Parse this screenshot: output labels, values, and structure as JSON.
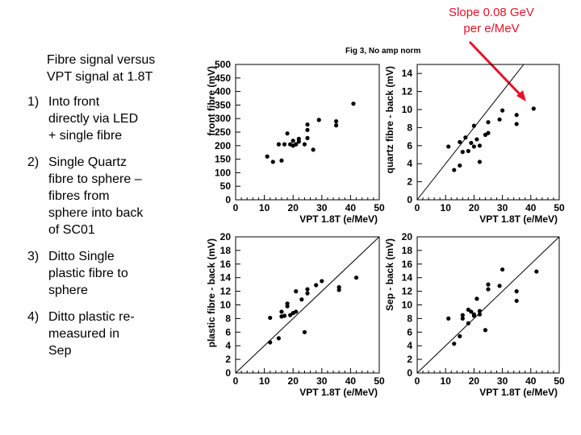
{
  "annotation": {
    "line1": "Slope 0.08 GeV",
    "line2": "per e/MeV",
    "color": "#e8102a"
  },
  "side_text": {
    "intro": "Fibre signal versus VPT signal at 1.8T",
    "items": [
      {
        "num": "1)",
        "text": "Into front directly via LED + single fibre"
      },
      {
        "num": "2)",
        "text": "Single Quartz fibre to sphere – fibres from sphere into back of SC01"
      },
      {
        "num": "3)",
        "text": "Ditto Single plastic fibre to sphere"
      },
      {
        "num": "4)",
        "text": "Ditto plastic re-measured in Sep"
      }
    ]
  },
  "figure_title": "Fig 3, No amp norm",
  "chart_data": [
    {
      "type": "scatter",
      "name": "front",
      "xlabel": "VPT 1.8T (e/MeV)",
      "ylabel": "front fibre (mV)",
      "xlim": [
        0,
        50
      ],
      "ylim": [
        0,
        500
      ],
      "xticks": [
        0,
        10,
        20,
        30,
        40,
        50
      ],
      "yticks": [
        0,
        50,
        100,
        150,
        200,
        250,
        300,
        350,
        400,
        450,
        500
      ],
      "diagonal": false,
      "points": [
        [
          11,
          160
        ],
        [
          13,
          140
        ],
        [
          15,
          205
        ],
        [
          16,
          145
        ],
        [
          17,
          205
        ],
        [
          18,
          245
        ],
        [
          19,
          205
        ],
        [
          20,
          200
        ],
        [
          20,
          218
        ],
        [
          21,
          205
        ],
        [
          22,
          215
        ],
        [
          22,
          225
        ],
        [
          24,
          205
        ],
        [
          25,
          228
        ],
        [
          25,
          258
        ],
        [
          25,
          278
        ],
        [
          27,
          185
        ],
        [
          29,
          295
        ],
        [
          35,
          290
        ],
        [
          35,
          275
        ],
        [
          41,
          355
        ]
      ]
    },
    {
      "type": "scatter",
      "name": "quartz",
      "xlabel": "VPT 1.8T (e/MeV)",
      "ylabel": "quartz fibre - back (mV)",
      "xlim": [
        0,
        50
      ],
      "ylim": [
        0,
        15
      ],
      "xticks": [
        0,
        10,
        20,
        30,
        40,
        50
      ],
      "yticks": [
        0,
        2,
        4,
        6,
        8,
        10,
        12,
        14
      ],
      "diagonal": true,
      "points": [
        [
          11,
          5.9
        ],
        [
          13,
          3.3
        ],
        [
          15,
          3.8
        ],
        [
          15,
          6.4
        ],
        [
          16,
          5.3
        ],
        [
          17,
          6.9
        ],
        [
          18,
          5.4
        ],
        [
          19,
          6.3
        ],
        [
          20,
          5.9
        ],
        [
          20,
          8.2
        ],
        [
          21,
          6.7
        ],
        [
          22,
          6.0
        ],
        [
          22,
          4.2
        ],
        [
          24,
          7.2
        ],
        [
          25,
          8.6
        ],
        [
          25,
          7.4
        ],
        [
          29,
          8.9
        ],
        [
          30,
          9.9
        ],
        [
          35,
          8.4
        ],
        [
          35,
          9.4
        ],
        [
          41,
          10.1
        ]
      ]
    },
    {
      "type": "scatter",
      "name": "plastic",
      "xlabel": "VPT 1.8T (e/MeV)",
      "ylabel": "plastic fibre - back (mV)",
      "xlim": [
        0,
        50
      ],
      "ylim": [
        0,
        20
      ],
      "xticks": [
        0,
        10,
        20,
        30,
        40,
        50
      ],
      "yticks": [
        0,
        2,
        4,
        6,
        8,
        10,
        12,
        14,
        16,
        18,
        20
      ],
      "diagonal": true,
      "points": [
        [
          12,
          4.5
        ],
        [
          12,
          8.1
        ],
        [
          15,
          5.1
        ],
        [
          16,
          8.3
        ],
        [
          16,
          9.0
        ],
        [
          17,
          8.4
        ],
        [
          18,
          9.8
        ],
        [
          18,
          10.2
        ],
        [
          19,
          8.5
        ],
        [
          20,
          8.8
        ],
        [
          21,
          9.0
        ],
        [
          21,
          12.0
        ],
        [
          23,
          10.8
        ],
        [
          24,
          6.0
        ],
        [
          25,
          11.7
        ],
        [
          25,
          12.3
        ],
        [
          28,
          12.9
        ],
        [
          30,
          13.5
        ],
        [
          36,
          12.2
        ],
        [
          36,
          12.6
        ],
        [
          42,
          14.0
        ]
      ]
    },
    {
      "type": "scatter",
      "name": "sep",
      "xlabel": "VPT 1.8T (e/MeV)",
      "ylabel": "Sep - back (mV)",
      "xlim": [
        0,
        50
      ],
      "ylim": [
        0,
        20
      ],
      "xticks": [
        0,
        10,
        20,
        30,
        40,
        50
      ],
      "yticks": [
        0,
        2,
        4,
        6,
        8,
        10,
        12,
        14,
        16,
        18,
        20
      ],
      "diagonal": true,
      "points": [
        [
          11,
          8.0
        ],
        [
          13,
          4.3
        ],
        [
          15,
          5.4
        ],
        [
          16,
          8.5
        ],
        [
          16,
          8.0
        ],
        [
          18,
          7.3
        ],
        [
          18,
          9.3
        ],
        [
          19,
          9.0
        ],
        [
          20,
          8.4
        ],
        [
          20,
          8.6
        ],
        [
          21,
          10.9
        ],
        [
          22,
          9.1
        ],
        [
          22,
          8.6
        ],
        [
          24,
          6.3
        ],
        [
          25,
          12.3
        ],
        [
          25,
          13.0
        ],
        [
          29,
          12.8
        ],
        [
          30,
          15.2
        ],
        [
          35,
          12.0
        ],
        [
          35,
          10.6
        ],
        [
          42,
          14.9
        ]
      ]
    }
  ]
}
